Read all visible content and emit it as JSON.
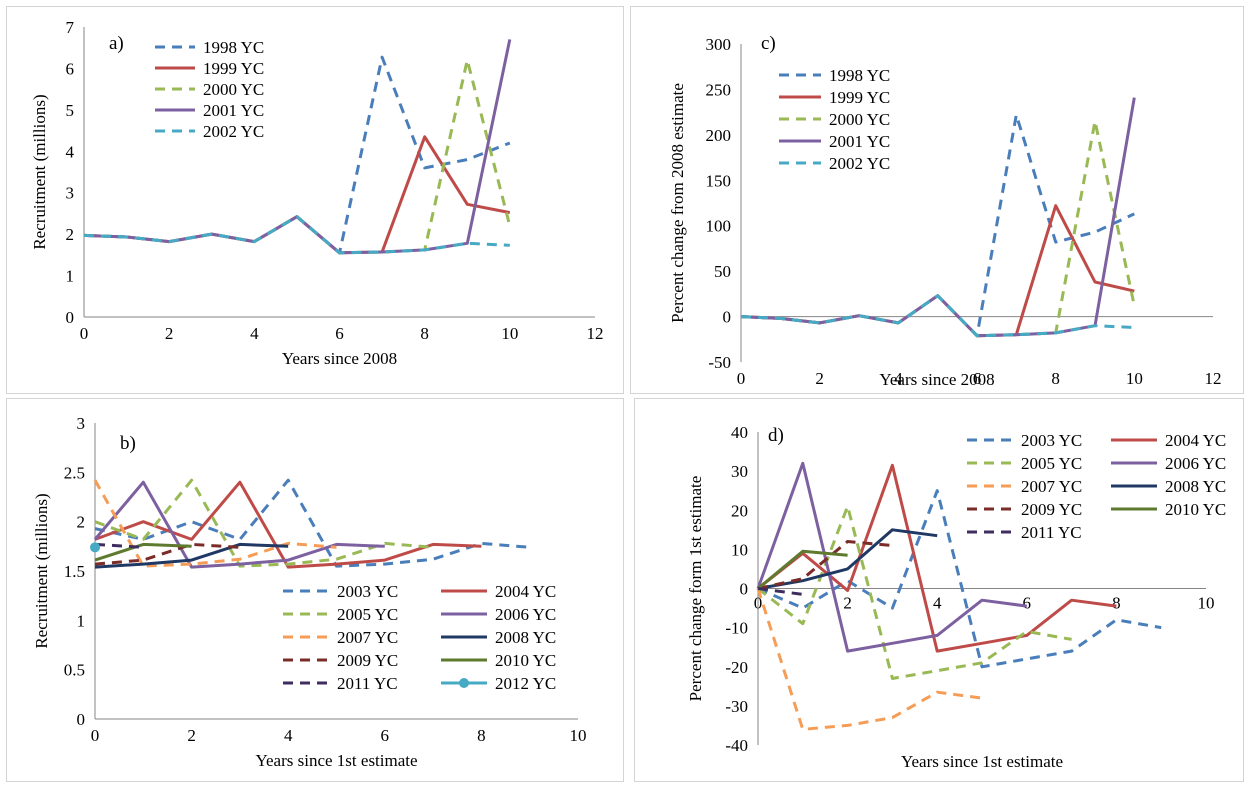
{
  "charts": [
    {
      "id": "a",
      "type": "line",
      "panel_label": "a)",
      "xlabel": "Years since 2008",
      "ylabel": "Recruitment (millions)",
      "xlim": [
        0,
        12
      ],
      "ylim": [
        0,
        7
      ],
      "xticks": [
        0,
        2,
        4,
        6,
        8,
        10,
        12
      ],
      "yticks": [
        0,
        1,
        2,
        3,
        4,
        5,
        6,
        7
      ],
      "legend_columns": 1,
      "series": [
        {
          "name": "1998 YC",
          "color": "#4a7ebb",
          "dash": "dashed",
          "x": [
            0,
            1,
            2,
            3,
            4,
            5,
            6,
            7,
            8,
            9,
            10
          ],
          "y": [
            1.97,
            1.93,
            1.82,
            2.0,
            1.82,
            2.42,
            1.55,
            6.27,
            3.6,
            3.8,
            4.2
          ]
        },
        {
          "name": "1999 YC",
          "color": "#be4b48",
          "dash": "solid",
          "x": [
            0,
            1,
            2,
            3,
            4,
            5,
            6,
            7,
            8,
            9,
            10
          ],
          "y": [
            1.97,
            1.93,
            1.82,
            2.0,
            1.82,
            2.42,
            1.55,
            1.57,
            4.35,
            2.72,
            2.52
          ]
        },
        {
          "name": "2000 YC",
          "color": "#98b954",
          "dash": "dashed",
          "x": [
            0,
            1,
            2,
            3,
            4,
            5,
            6,
            7,
            8,
            9,
            10
          ],
          "y": [
            1.97,
            1.93,
            1.82,
            2.0,
            1.82,
            2.42,
            1.55,
            1.57,
            1.62,
            6.2,
            2.2
          ]
        },
        {
          "name": "2001 YC",
          "color": "#7d60a0",
          "dash": "solid",
          "x": [
            0,
            1,
            2,
            3,
            4,
            5,
            6,
            7,
            8,
            9,
            10
          ],
          "y": [
            1.97,
            1.93,
            1.82,
            2.0,
            1.82,
            2.42,
            1.55,
            1.57,
            1.62,
            1.78,
            6.7
          ]
        },
        {
          "name": "2002 YC",
          "color": "#46aac5",
          "dash": "dashed",
          "x": [
            0,
            1,
            2,
            3,
            4,
            5,
            6,
            7,
            8,
            9,
            10
          ],
          "y": [
            1.97,
            1.93,
            1.82,
            2.0,
            1.82,
            2.42,
            1.55,
            1.57,
            1.62,
            1.78,
            1.73
          ]
        }
      ]
    },
    {
      "id": "c",
      "type": "line",
      "panel_label": "c)",
      "xlabel": "Years since 2008",
      "ylabel": "Percent change from 2008 estimate",
      "xlim": [
        0,
        12
      ],
      "ylim": [
        -50,
        300
      ],
      "xticks": [
        0,
        2,
        4,
        6,
        8,
        10,
        12
      ],
      "yticks": [
        -50,
        0,
        50,
        100,
        150,
        200,
        250,
        300
      ],
      "legend_columns": 1,
      "series": [
        {
          "name": "1998 YC",
          "color": "#4a7ebb",
          "dash": "dashed",
          "x": [
            0,
            1,
            2,
            3,
            4,
            5,
            6,
            7,
            8,
            9,
            10
          ],
          "y": [
            0,
            -2,
            -7,
            1,
            -7,
            23,
            -21,
            222,
            82,
            93,
            113
          ]
        },
        {
          "name": "1999 YC",
          "color": "#be4b48",
          "dash": "solid",
          "x": [
            0,
            1,
            2,
            3,
            4,
            5,
            6,
            7,
            8,
            9,
            10
          ],
          "y": [
            0,
            -2,
            -7,
            1,
            -7,
            23,
            -21,
            -20,
            122,
            38,
            28
          ]
        },
        {
          "name": "2000 YC",
          "color": "#98b954",
          "dash": "dashed",
          "x": [
            0,
            1,
            2,
            3,
            4,
            5,
            6,
            7,
            8,
            9,
            10
          ],
          "y": [
            0,
            -2,
            -7,
            1,
            -7,
            23,
            -21,
            -20,
            -18,
            215,
            12
          ]
        },
        {
          "name": "2001 YC",
          "color": "#7d60a0",
          "dash": "solid",
          "x": [
            0,
            1,
            2,
            3,
            4,
            5,
            6,
            7,
            8,
            9,
            10
          ],
          "y": [
            0,
            -2,
            -7,
            1,
            -7,
            23,
            -21,
            -20,
            -18,
            -10,
            241
          ]
        },
        {
          "name": "2002 YC",
          "color": "#46aac5",
          "dash": "dashed",
          "x": [
            0,
            1,
            2,
            3,
            4,
            5,
            6,
            7,
            8,
            9,
            10
          ],
          "y": [
            0,
            -2,
            -7,
            1,
            -7,
            23,
            -21,
            -20,
            -18,
            -10,
            -12
          ]
        }
      ]
    },
    {
      "id": "b",
      "type": "line",
      "panel_label": "b)",
      "xlabel": "Years since 1st estimate",
      "ylabel": "Recruitment (millions)",
      "xlim": [
        0,
        10
      ],
      "ylim": [
        0,
        3
      ],
      "xticks": [
        0,
        2,
        4,
        6,
        8,
        10
      ],
      "yticks": [
        0,
        0.5,
        1,
        1.5,
        2,
        2.5,
        3
      ],
      "legend_columns": 2,
      "series": [
        {
          "name": "2003 YC",
          "color": "#4a7ebb",
          "dash": "dashed",
          "x": [
            0,
            1,
            2,
            3,
            4,
            5,
            6,
            7,
            8,
            9
          ],
          "y": [
            1.93,
            1.82,
            2.0,
            1.82,
            2.42,
            1.55,
            1.57,
            1.62,
            1.78,
            1.74
          ]
        },
        {
          "name": "2004 YC",
          "color": "#be4b48",
          "dash": "solid",
          "x": [
            0,
            1,
            2,
            3,
            4,
            5,
            6,
            7,
            8
          ],
          "y": [
            1.82,
            2.0,
            1.82,
            2.4,
            1.54,
            1.57,
            1.61,
            1.77,
            1.75
          ]
        },
        {
          "name": "2005 YC",
          "color": "#98b954",
          "dash": "dashed",
          "x": [
            0,
            1,
            2,
            3,
            4,
            5,
            6,
            7
          ],
          "y": [
            2.0,
            1.82,
            2.42,
            1.55,
            1.57,
            1.62,
            1.78,
            1.74
          ]
        },
        {
          "name": "2006 YC",
          "color": "#7d60a0",
          "dash": "solid",
          "x": [
            0,
            1,
            2,
            3,
            4,
            5,
            6
          ],
          "y": [
            1.82,
            2.4,
            1.54,
            1.57,
            1.61,
            1.77,
            1.75
          ]
        },
        {
          "name": "2007 YC",
          "color": "#f59d56",
          "dash": "dashed",
          "x": [
            0,
            1,
            2,
            3,
            4,
            5
          ],
          "y": [
            2.42,
            1.55,
            1.57,
            1.62,
            1.78,
            1.74
          ]
        },
        {
          "name": "2008 YC",
          "color": "#1f3864",
          "dash": "solid",
          "x": [
            0,
            1,
            2,
            3,
            4
          ],
          "y": [
            1.54,
            1.57,
            1.61,
            1.77,
            1.75
          ]
        },
        {
          "name": "2009 YC",
          "color": "#7b2b28",
          "dash": "dashed",
          "x": [
            0,
            1,
            2,
            3
          ],
          "y": [
            1.57,
            1.61,
            1.77,
            1.74
          ]
        },
        {
          "name": "2010 YC",
          "color": "#5e7a2e",
          "dash": "solid",
          "x": [
            0,
            1,
            2
          ],
          "y": [
            1.61,
            1.77,
            1.75
          ]
        },
        {
          "name": "2011 YC",
          "color": "#3e2d5e",
          "dash": "dashed",
          "x": [
            0,
            1
          ],
          "y": [
            1.77,
            1.74
          ]
        },
        {
          "name": "2012 YC",
          "color": "#46aac5",
          "dash": "solid",
          "marker": "circle",
          "x": [
            0
          ],
          "y": [
            1.74
          ]
        }
      ]
    },
    {
      "id": "d",
      "type": "line",
      "panel_label": "d)",
      "xlabel": "Years since 1st estimate",
      "ylabel": "Percent change form 1st estimate",
      "xlim": [
        0,
        10
      ],
      "ylim": [
        -40,
        40
      ],
      "xticks": [
        0,
        2,
        4,
        6,
        8,
        10
      ],
      "yticks": [
        -40,
        -30,
        -20,
        -10,
        0,
        10,
        20,
        30,
        40
      ],
      "legend_columns": 2,
      "series": [
        {
          "name": "2003 YC",
          "color": "#4a7ebb",
          "dash": "dashed",
          "x": [
            0,
            1,
            2,
            3,
            4,
            5,
            6,
            7,
            8,
            9
          ],
          "y": [
            0,
            -5,
            2,
            -5,
            25,
            -20,
            -18,
            -16,
            -8,
            -10
          ]
        },
        {
          "name": "2004 YC",
          "color": "#be4b48",
          "dash": "solid",
          "x": [
            0,
            1,
            2,
            3,
            4,
            5,
            6,
            7,
            8
          ],
          "y": [
            0,
            9,
            -0.5,
            31.5,
            -16,
            -14,
            -12,
            -3,
            -4.5
          ]
        },
        {
          "name": "2005 YC",
          "color": "#98b954",
          "dash": "dashed",
          "x": [
            0,
            1,
            2,
            3,
            4,
            5,
            6,
            7
          ],
          "y": [
            0,
            -9,
            21,
            -23,
            -21,
            -19,
            -11,
            -13
          ]
        },
        {
          "name": "2006 YC",
          "color": "#7d60a0",
          "dash": "solid",
          "x": [
            0,
            1,
            2,
            3,
            4,
            5,
            6
          ],
          "y": [
            0,
            32,
            -16,
            -14,
            -12,
            -3,
            -4.5
          ]
        },
        {
          "name": "2007 YC",
          "color": "#f59d56",
          "dash": "dashed",
          "x": [
            0,
            1,
            2,
            3,
            4,
            5
          ],
          "y": [
            0,
            -36,
            -35,
            -33,
            -26.5,
            -28
          ]
        },
        {
          "name": "2008 YC",
          "color": "#1f3864",
          "dash": "solid",
          "x": [
            0,
            1,
            2,
            3,
            4
          ],
          "y": [
            0,
            2,
            5,
            15,
            13.5
          ]
        },
        {
          "name": "2009 YC",
          "color": "#7b2b28",
          "dash": "dashed",
          "x": [
            0,
            1,
            2,
            3
          ],
          "y": [
            0,
            2.5,
            12,
            11
          ]
        },
        {
          "name": "2010 YC",
          "color": "#5e7a2e",
          "dash": "solid",
          "x": [
            0,
            1,
            2
          ],
          "y": [
            0,
            9.5,
            8.5
          ]
        },
        {
          "name": "2011 YC",
          "color": "#3e2d5e",
          "dash": "dashed",
          "x": [
            0,
            1
          ],
          "y": [
            0,
            -1.5
          ]
        }
      ]
    }
  ]
}
